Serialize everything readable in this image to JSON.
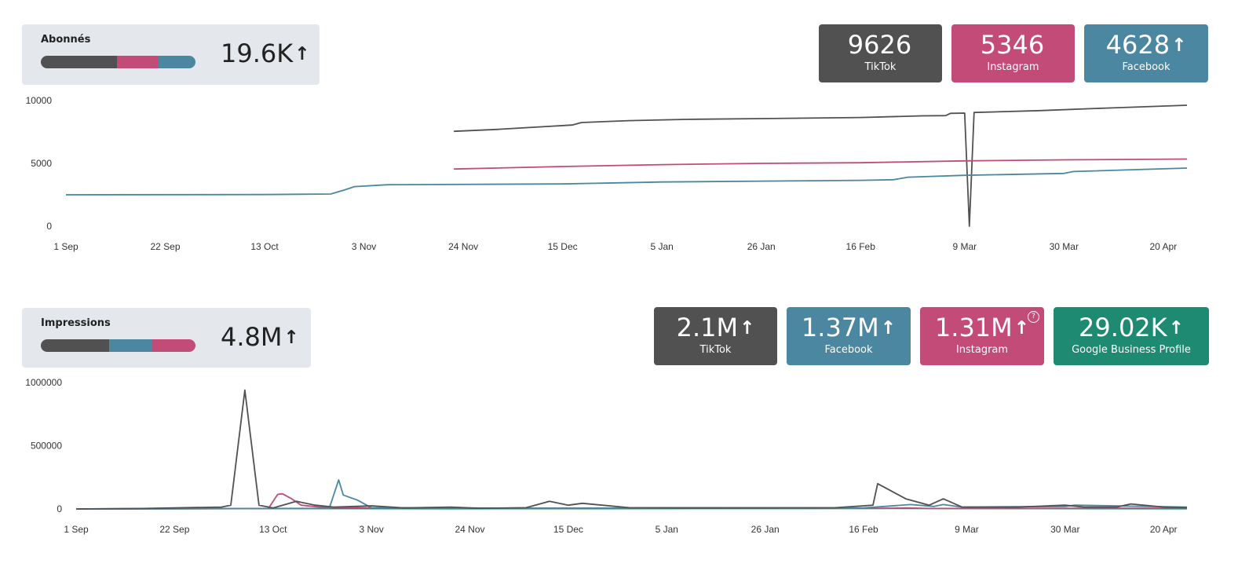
{
  "abonnes": {
    "title": "Abonnés",
    "total": "19.6K",
    "total_arrow": "↑",
    "bar_shares": [
      {
        "color": "#515151",
        "share": 0.49
      },
      {
        "color": "#c24b78",
        "share": 0.27
      },
      {
        "color": "#4b87a1",
        "share": 0.24
      }
    ],
    "cards": [
      {
        "value": "9626",
        "arrow": "",
        "label": "TikTok",
        "color": "#515151"
      },
      {
        "value": "5346",
        "arrow": "",
        "label": "Instagram",
        "color": "#c24b78"
      },
      {
        "value": "4628",
        "arrow": "↑",
        "label": "Facebook",
        "color": "#4b87a1"
      }
    ]
  },
  "impressions": {
    "title": "Impressions",
    "total": "4.8M",
    "total_arrow": "↑",
    "bar_shares": [
      {
        "color": "#515151",
        "share": 0.44
      },
      {
        "color": "#4b87a1",
        "share": 0.28
      },
      {
        "color": "#c24b78",
        "share": 0.28
      }
    ],
    "cards": [
      {
        "value": "2.1M",
        "arrow": "↑",
        "label": "TikTok",
        "color": "#515151",
        "help": ""
      },
      {
        "value": "1.37M",
        "arrow": "↑",
        "label": "Facebook",
        "color": "#4b87a1",
        "help": ""
      },
      {
        "value": "1.31M",
        "arrow": "↑",
        "label": "Instagram",
        "color": "#c24b78",
        "help": "?"
      },
      {
        "value": "29.02K",
        "arrow": "↑",
        "label": "Google Business Profile",
        "color": "#1e8a71",
        "help": ""
      }
    ]
  },
  "chart_data": [
    {
      "type": "line",
      "title": "",
      "xlabel": "",
      "ylabel": "",
      "ylim": [
        0,
        10000
      ],
      "yticks": [
        0,
        5000,
        10000
      ],
      "xlim": [
        "2023-09-01",
        "2024-04-26"
      ],
      "xticks": [
        {
          "date": "2023-09-01",
          "label": "1 Sep"
        },
        {
          "date": "2023-09-22",
          "label": "22 Sep"
        },
        {
          "date": "2023-10-13",
          "label": "13 Oct"
        },
        {
          "date": "2023-11-03",
          "label": "3 Nov"
        },
        {
          "date": "2023-11-24",
          "label": "24 Nov"
        },
        {
          "date": "2023-12-15",
          "label": "15 Dec"
        },
        {
          "date": "2024-01-05",
          "label": "5 Jan"
        },
        {
          "date": "2024-01-26",
          "label": "26 Jan"
        },
        {
          "date": "2024-02-16",
          "label": "16 Feb"
        },
        {
          "date": "2024-03-09",
          "label": "9 Mar"
        },
        {
          "date": "2024-03-30",
          "label": "30 Mar"
        },
        {
          "date": "2024-04-20",
          "label": "20 Apr"
        }
      ],
      "grid": false,
      "legend": "none",
      "series": [
        {
          "color": "#515151",
          "points": [
            [
              "2023-11-22",
              7550
            ],
            [
              "2023-12-01",
              7700
            ],
            [
              "2023-12-10",
              7900
            ],
            [
              "2023-12-17",
              8050
            ],
            [
              "2023-12-19",
              8250
            ],
            [
              "2023-12-29",
              8400
            ],
            [
              "2024-01-10",
              8500
            ],
            [
              "2024-01-26",
              8560
            ],
            [
              "2024-02-16",
              8650
            ],
            [
              "2024-02-29",
              8780
            ],
            [
              "2024-03-05",
              8800
            ],
            [
              "2024-03-06",
              8980
            ],
            [
              "2024-03-09",
              9000
            ],
            [
              "2024-03-10",
              0
            ],
            [
              "2024-03-11",
              9050
            ],
            [
              "2024-03-25",
              9200
            ],
            [
              "2024-04-08",
              9400
            ],
            [
              "2024-04-25",
              9626
            ]
          ]
        },
        {
          "color": "#c24b78",
          "points": [
            [
              "2023-11-22",
              4550
            ],
            [
              "2023-12-15",
              4750
            ],
            [
              "2024-01-05",
              4900
            ],
            [
              "2024-01-26",
              5000
            ],
            [
              "2024-02-16",
              5050
            ],
            [
              "2024-03-09",
              5200
            ],
            [
              "2024-03-30",
              5280
            ],
            [
              "2024-04-25",
              5346
            ]
          ]
        },
        {
          "color": "#4b87a1",
          "points": [
            [
              "2023-09-01",
              2500
            ],
            [
              "2023-10-13",
              2520
            ],
            [
              "2023-10-27",
              2560
            ],
            [
              "2023-10-30",
              2900
            ],
            [
              "2023-11-01",
              3150
            ],
            [
              "2023-11-08",
              3300
            ],
            [
              "2023-12-15",
              3360
            ],
            [
              "2024-01-05",
              3520
            ],
            [
              "2024-02-16",
              3650
            ],
            [
              "2024-02-23",
              3700
            ],
            [
              "2024-02-26",
              3900
            ],
            [
              "2024-03-09",
              4050
            ],
            [
              "2024-03-30",
              4200
            ],
            [
              "2024-04-01",
              4350
            ],
            [
              "2024-04-25",
              4628
            ]
          ]
        }
      ]
    },
    {
      "type": "line",
      "title": "",
      "xlabel": "",
      "ylabel": "",
      "ylim": [
        0,
        1000000
      ],
      "yticks": [
        0,
        500000,
        1000000
      ],
      "xlim": [
        "2023-09-01",
        "2024-04-26"
      ],
      "xticks": [
        {
          "date": "2023-09-01",
          "label": "1 Sep"
        },
        {
          "date": "2023-09-22",
          "label": "22 Sep"
        },
        {
          "date": "2023-10-13",
          "label": "13 Oct"
        },
        {
          "date": "2023-11-03",
          "label": "3 Nov"
        },
        {
          "date": "2023-11-24",
          "label": "24 Nov"
        },
        {
          "date": "2023-12-15",
          "label": "15 Dec"
        },
        {
          "date": "2024-01-05",
          "label": "5 Jan"
        },
        {
          "date": "2024-01-26",
          "label": "26 Jan"
        },
        {
          "date": "2024-02-16",
          "label": "16 Feb"
        },
        {
          "date": "2024-03-09",
          "label": "9 Mar"
        },
        {
          "date": "2024-03-30",
          "label": "30 Mar"
        },
        {
          "date": "2024-04-20",
          "label": "20 Apr"
        }
      ],
      "grid": false,
      "legend": "none",
      "series": [
        {
          "color": "#1e8a71",
          "points": [
            [
              "2023-09-01",
              0
            ],
            [
              "2023-10-15",
              3000
            ],
            [
              "2023-11-20",
              2000
            ],
            [
              "2024-01-10",
              3000
            ],
            [
              "2024-02-20",
              4000
            ],
            [
              "2024-03-20",
              3000
            ],
            [
              "2024-04-25",
              2000
            ]
          ]
        },
        {
          "color": "#c24b78",
          "points": [
            [
              "2023-09-01",
              0
            ],
            [
              "2023-10-12",
              3000
            ],
            [
              "2023-10-14",
              115000
            ],
            [
              "2023-10-15",
              120000
            ],
            [
              "2023-10-17",
              80000
            ],
            [
              "2023-10-19",
              30000
            ],
            [
              "2023-10-23",
              15000
            ],
            [
              "2023-10-30",
              10000
            ],
            [
              "2023-11-10",
              8000
            ],
            [
              "2023-12-01",
              7000
            ],
            [
              "2024-01-10",
              6000
            ],
            [
              "2024-02-20",
              5000
            ],
            [
              "2024-02-25",
              8000
            ],
            [
              "2024-03-01",
              4000
            ],
            [
              "2024-04-25",
              6000
            ]
          ]
        },
        {
          "color": "#4b87a1",
          "points": [
            [
              "2023-09-01",
              0
            ],
            [
              "2023-10-25",
              5000
            ],
            [
              "2023-10-27",
              230000
            ],
            [
              "2023-10-28",
              110000
            ],
            [
              "2023-10-31",
              70000
            ],
            [
              "2023-11-03",
              10000
            ],
            [
              "2023-12-15",
              5000
            ],
            [
              "2024-01-05",
              10000
            ],
            [
              "2024-02-16",
              8000
            ],
            [
              "2024-02-26",
              35000
            ],
            [
              "2024-03-02",
              20000
            ],
            [
              "2024-03-04",
              35000
            ],
            [
              "2024-03-08",
              15000
            ],
            [
              "2024-03-30",
              20000
            ],
            [
              "2024-04-01",
              30000
            ],
            [
              "2024-04-25",
              15000
            ]
          ]
        },
        {
          "color": "#515151",
          "points": [
            [
              "2023-09-01",
              0
            ],
            [
              "2023-09-15",
              4000
            ],
            [
              "2023-10-02",
              15000
            ],
            [
              "2023-10-04",
              30000
            ],
            [
              "2023-10-07",
              940000
            ],
            [
              "2023-10-10",
              30000
            ],
            [
              "2023-10-13",
              8000
            ],
            [
              "2023-10-18",
              60000
            ],
            [
              "2023-10-22",
              30000
            ],
            [
              "2023-10-26",
              15000
            ],
            [
              "2023-11-03",
              25000
            ],
            [
              "2023-11-10",
              8000
            ],
            [
              "2023-11-20",
              15000
            ],
            [
              "2023-11-26",
              5000
            ],
            [
              "2023-12-06",
              10000
            ],
            [
              "2023-12-11",
              60000
            ],
            [
              "2023-12-15",
              30000
            ],
            [
              "2023-12-18",
              45000
            ],
            [
              "2023-12-28",
              10000
            ],
            [
              "2024-01-10",
              8000
            ],
            [
              "2024-02-10",
              10000
            ],
            [
              "2024-02-16",
              25000
            ],
            [
              "2024-02-18",
              30000
            ],
            [
              "2024-02-19",
              200000
            ],
            [
              "2024-02-25",
              80000
            ],
            [
              "2024-03-01",
              30000
            ],
            [
              "2024-03-04",
              80000
            ],
            [
              "2024-03-08",
              15000
            ],
            [
              "2024-03-20",
              15000
            ],
            [
              "2024-03-30",
              30000
            ],
            [
              "2024-04-03",
              15000
            ],
            [
              "2024-04-10",
              15000
            ],
            [
              "2024-04-13",
              40000
            ],
            [
              "2024-04-20",
              15000
            ],
            [
              "2024-04-25",
              10000
            ]
          ]
        }
      ]
    }
  ]
}
